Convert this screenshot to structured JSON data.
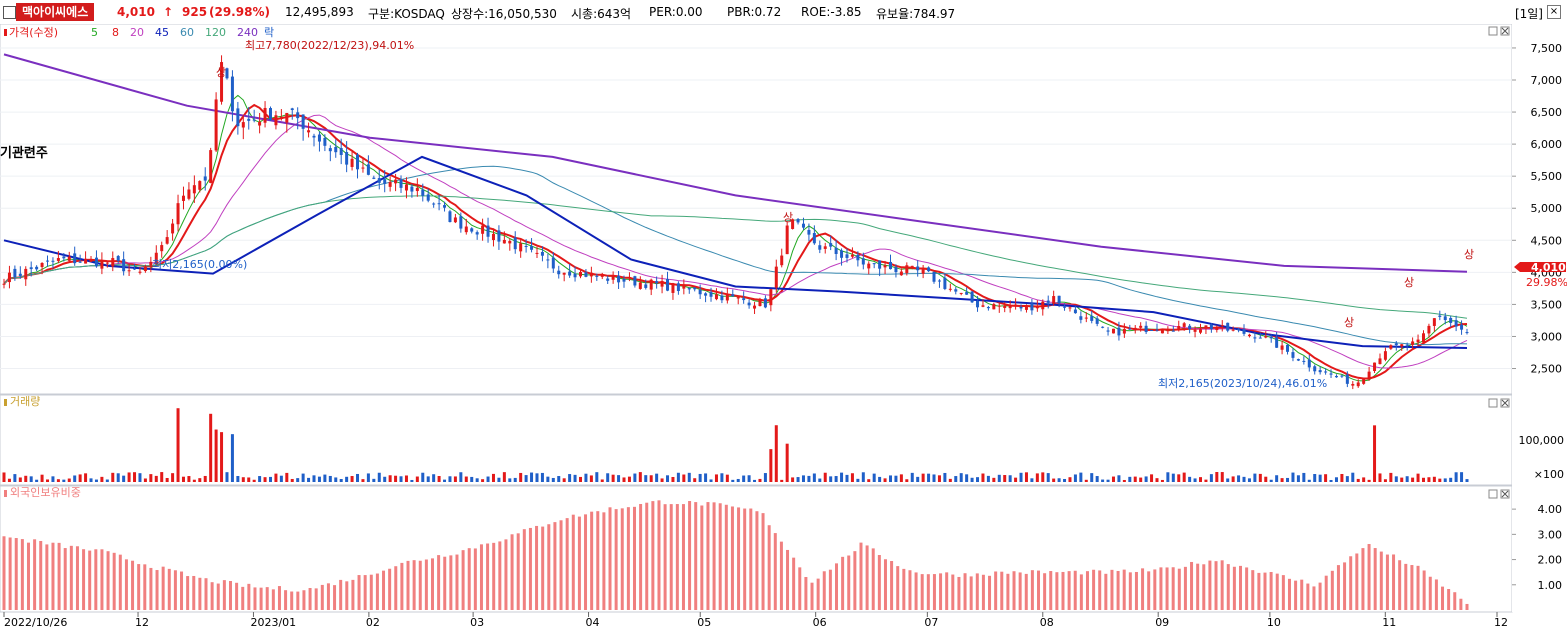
{
  "header": {
    "name": "맥아이씨에스",
    "price": "4,010",
    "arrow": "↑",
    "change": "925",
    "change_pct": "(29.98%)",
    "volume": "12,495,893",
    "market": "구분:KOSDAQ",
    "shares": "상장수:16,050,530",
    "mktcap": "시총:643억",
    "per": "PER:0.00",
    "pbr": "PBR:0.72",
    "roe": "ROE:-3.85",
    "reserve": "유보율:784.97",
    "period": "[1일]",
    "close": "×"
  },
  "colors": {
    "up": "#e31919",
    "down": "#1f5fc8",
    "ma5": "#22a822",
    "ma8": "#e31919",
    "ma20": "#c040c0",
    "ma45": "#0d21b8",
    "ma60": "#3a8ab0",
    "ma120": "#45a87a",
    "ma240": "#7a2fbf",
    "foreign": "#f07f7f"
  },
  "price_panel": {
    "legend_price": "가격(수정)",
    "legend_ma": [
      "5",
      "8",
      "20",
      "45",
      "60",
      "120",
      "240"
    ],
    "legend_down": "락",
    "side_note": "기관련주",
    "high_label": "최고7,780(2022/12/23),94.01%",
    "low_label": "최저2,165(2023/10/24),46.01%",
    "min_label": "최저2,165(0.00%)",
    "current_price": "4,010",
    "current_pct": "29.98%",
    "limit_up": "상"
  },
  "volume_panel": {
    "legend": "거래량"
  },
  "foreign_panel": {
    "legend": "외국인보유비중"
  },
  "chart_data": [
    {
      "type": "candlestick",
      "title": "가격(수정)",
      "x_ticks": [
        "2022/10/26",
        "12",
        "2023/01",
        "02",
        "03",
        "04",
        "05",
        "06",
        "07",
        "08",
        "09",
        "10",
        "11",
        "12"
      ],
      "y_ticks": [
        "2,500",
        "3,000",
        "3,500",
        "4,000",
        "4,500",
        "5,000",
        "5,500",
        "6,000",
        "6,500",
        "7,000",
        "7,500"
      ],
      "ylim": [
        2165,
        7780
      ],
      "close_path": [
        [
          "2022/10/26",
          3900
        ],
        [
          "2022/11/10",
          4200
        ],
        [
          "2022/11/25",
          4150
        ],
        [
          "2022/12/01",
          3950
        ],
        [
          "2022/12/07",
          4300
        ],
        [
          "2022/12/14",
          5350
        ],
        [
          "2022/12/20",
          5500
        ],
        [
          "2022/12/23",
          7300
        ],
        [
          "2022/12/28",
          6300
        ],
        [
          "2023/01/06",
          6500
        ],
        [
          "2023/01/13",
          6400
        ],
        [
          "2023/01/20",
          6000
        ],
        [
          "2023/02/03",
          5400
        ],
        [
          "2023/02/14",
          5300
        ],
        [
          "2023/02/24",
          4800
        ],
        [
          "2023/03/10",
          4500
        ],
        [
          "2023/03/24",
          4050
        ],
        [
          "2023/04/07",
          3900
        ],
        [
          "2023/04/21",
          3800
        ],
        [
          "2023/05/05",
          3650
        ],
        [
          "2023/05/19",
          3500
        ],
        [
          "2023/05/25",
          4800
        ],
        [
          "2023/06/02",
          4400
        ],
        [
          "2023/06/16",
          4100
        ],
        [
          "2023/06/30",
          4000
        ],
        [
          "2023/07/14",
          3500
        ],
        [
          "2023/07/28",
          3450
        ],
        [
          "2023/08/04",
          3600
        ],
        [
          "2023/08/18",
          3050
        ],
        [
          "2023/09/01",
          3150
        ],
        [
          "2023/09/15",
          3150
        ],
        [
          "2023/09/29",
          3000
        ],
        [
          "2023/10/13",
          2500
        ],
        [
          "2023/10/24",
          2250
        ],
        [
          "2023/11/01",
          2800
        ],
        [
          "2023/11/10",
          2900
        ],
        [
          "2023/11/15",
          3350
        ],
        [
          "2023/11/24",
          3000
        ],
        [
          "2023/11/30",
          4010
        ]
      ],
      "moving_averages": {
        "ma45": [
          4500,
          4100,
          3980,
          4900,
          5800,
          5200,
          4200,
          3780,
          3700,
          3600,
          3500,
          3380,
          3050,
          2850,
          2820
        ],
        "ma240": [
          7400,
          6600,
          6100,
          5800,
          5200,
          4800,
          4400,
          4100,
          4010
        ]
      }
    },
    {
      "type": "bar",
      "title": "거래량",
      "y_ticks": [
        "100,000",
        "×100"
      ]
    },
    {
      "type": "bar",
      "title": "외국인보유비중",
      "y_ticks": [
        "1.00",
        "2.00",
        "3.00",
        "4.00"
      ],
      "ylim": [
        0,
        4.6
      ],
      "values": [
        2.9,
        2.6,
        2.3,
        1.7,
        1.2,
        0.9,
        0.8,
        1.3,
        1.9,
        2.3,
        2.9,
        3.6,
        4.0,
        4.3,
        4.2,
        3.9,
        1.1,
        2.6,
        1.5,
        1.4,
        1.5,
        1.5,
        1.5,
        1.6,
        2.0,
        1.5,
        1.0,
        2.6,
        1.7,
        0.3
      ]
    }
  ]
}
